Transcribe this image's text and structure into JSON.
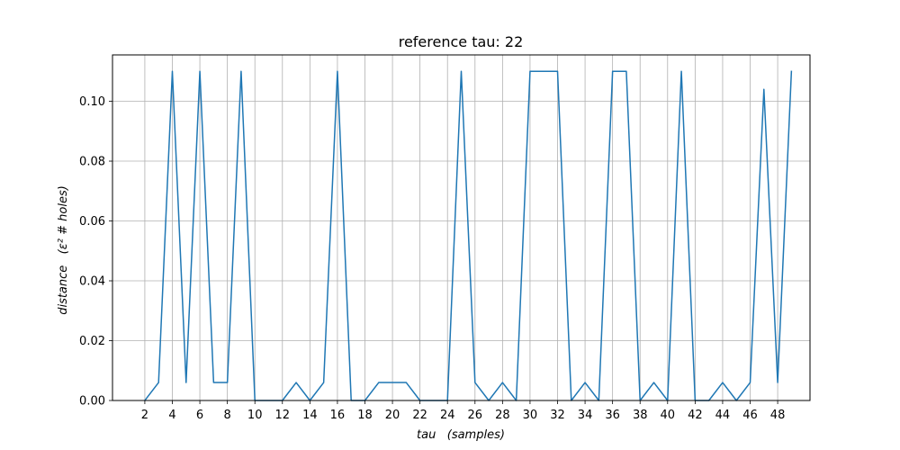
{
  "chart_data": {
    "type": "line",
    "title": "reference tau: 22",
    "xlabel": "tau   (samples)",
    "ylabel": "distance   (ε² # holes)",
    "xlim": [
      -0.35,
      50.35
    ],
    "ylim": [
      0.0,
      0.1155
    ],
    "grid": true,
    "x_ticks": [
      2,
      4,
      6,
      8,
      10,
      12,
      14,
      16,
      18,
      20,
      22,
      24,
      26,
      28,
      30,
      32,
      34,
      36,
      38,
      40,
      42,
      44,
      46,
      48
    ],
    "y_ticks": [
      0.0,
      0.02,
      0.04,
      0.06,
      0.08,
      0.1
    ],
    "y_tick_labels": [
      "0.00",
      "0.02",
      "0.04",
      "0.06",
      "0.08",
      "0.10"
    ],
    "line_color": "#1f77b4",
    "x": [
      2,
      3,
      4,
      5,
      6,
      7,
      8,
      9,
      10,
      11,
      12,
      13,
      14,
      15,
      16,
      17,
      18,
      19,
      20,
      21,
      22,
      23,
      24,
      25,
      26,
      27,
      28,
      29,
      30,
      31,
      32,
      33,
      34,
      35,
      36,
      37,
      38,
      39,
      40,
      41,
      42,
      43,
      44,
      45,
      46,
      47,
      48,
      49
    ],
    "y": [
      0.0,
      0.006,
      0.11,
      0.006,
      0.11,
      0.006,
      0.006,
      0.11,
      0.0,
      0.0,
      0.0,
      0.006,
      0.0,
      0.006,
      0.11,
      0.0,
      0.0,
      0.006,
      0.006,
      0.006,
      0.0,
      0.0,
      0.0,
      0.11,
      0.006,
      0.0,
      0.006,
      0.0,
      0.11,
      0.11,
      0.11,
      0.0,
      0.006,
      0.0,
      0.11,
      0.11,
      0.0,
      0.006,
      0.0,
      0.11,
      0.0,
      0.0,
      0.006,
      0.0,
      0.006,
      0.104,
      0.006,
      0.11
    ]
  }
}
